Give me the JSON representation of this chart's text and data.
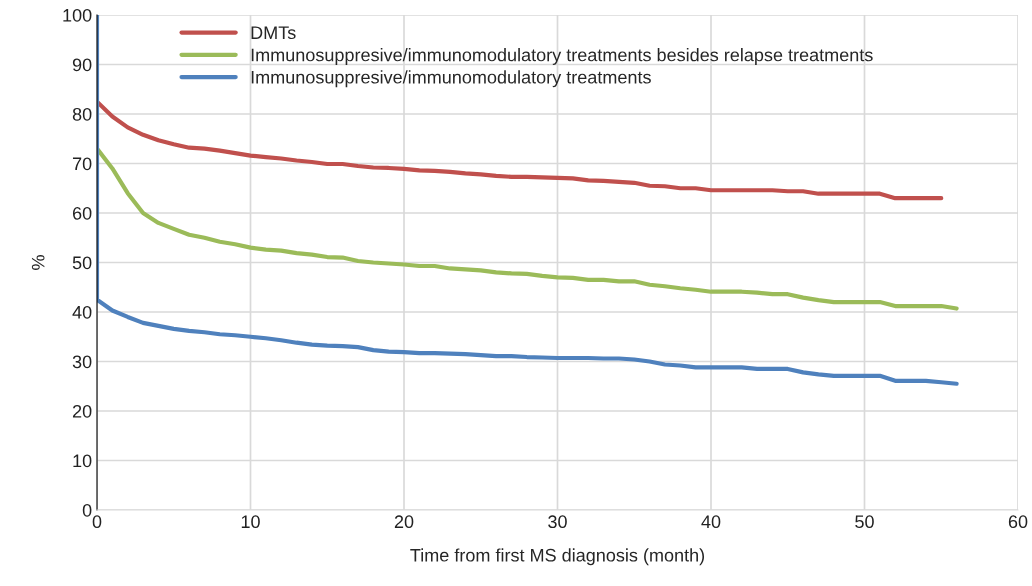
{
  "chart_data": {
    "type": "line",
    "xlabel": "Time from first MS diagnosis (month)",
    "ylabel": "%",
    "xlim": [
      0,
      60
    ],
    "xticks": [
      0,
      10,
      20,
      30,
      40,
      50,
      60
    ],
    "ylim": [
      0,
      100
    ],
    "yticks": [
      0,
      10,
      20,
      30,
      40,
      50,
      60,
      70,
      80,
      90,
      100
    ],
    "grid": true,
    "legend": "top",
    "marker": "none",
    "line_style": "solid",
    "series": [
      {
        "name": "DMTs",
        "color": "#c0504d",
        "x": [
          0,
          1,
          2,
          3,
          4,
          5,
          6,
          7,
          8,
          9,
          10,
          11,
          12,
          13,
          14,
          15,
          16,
          17,
          18,
          19,
          20,
          21,
          22,
          23,
          24,
          25,
          26,
          27,
          28,
          29,
          30,
          31,
          32,
          33,
          34,
          35,
          36,
          37,
          38,
          39,
          40,
          41,
          42,
          43,
          44,
          45,
          46,
          47,
          48,
          49,
          50,
          51,
          52,
          53,
          54,
          55
        ],
        "values": [
          82.5,
          79.5,
          77.3,
          75.8,
          74.7,
          73.9,
          73.2,
          73.0,
          72.6,
          72.1,
          71.6,
          71.3,
          71.0,
          70.6,
          70.3,
          69.9,
          69.9,
          69.5,
          69.2,
          69.1,
          68.9,
          68.6,
          68.5,
          68.3,
          68.0,
          67.8,
          67.5,
          67.3,
          67.3,
          67.2,
          67.1,
          67.0,
          66.6,
          66.5,
          66.3,
          66.1,
          65.5,
          65.4,
          65.0,
          65.0,
          64.6,
          64.6,
          64.6,
          64.6,
          64.6,
          64.4,
          64.4,
          63.9,
          63.9,
          63.9,
          63.9,
          63.9,
          63.0,
          63.0,
          63.0,
          63.0
        ]
      },
      {
        "name": "Immunosuppresive/immunomodulatory treatments besides relapse treatments",
        "color": "#9bbb59",
        "x": [
          0,
          1,
          2,
          3,
          4,
          5,
          6,
          7,
          8,
          9,
          10,
          11,
          12,
          13,
          14,
          15,
          16,
          17,
          18,
          19,
          20,
          21,
          22,
          23,
          24,
          25,
          26,
          27,
          28,
          29,
          30,
          31,
          32,
          33,
          34,
          35,
          36,
          37,
          38,
          39,
          40,
          41,
          42,
          43,
          44,
          45,
          46,
          47,
          48,
          49,
          50,
          51,
          52,
          53,
          54,
          55,
          56
        ],
        "values": [
          73,
          69,
          64,
          60,
          58,
          56.8,
          55.6,
          55.0,
          54.2,
          53.7,
          53.0,
          52.6,
          52.4,
          51.9,
          51.6,
          51.1,
          51.0,
          50.3,
          50.0,
          49.8,
          49.6,
          49.3,
          49.3,
          48.8,
          48.6,
          48.4,
          48.0,
          47.8,
          47.7,
          47.3,
          47.0,
          46.9,
          46.5,
          46.5,
          46.2,
          46.2,
          45.5,
          45.2,
          44.8,
          44.5,
          44.1,
          44.1,
          44.1,
          43.9,
          43.6,
          43.6,
          42.9,
          42.4,
          42.0,
          42.0,
          42.0,
          42.0,
          41.2,
          41.2,
          41.2,
          41.2,
          40.7
        ]
      },
      {
        "name": "Immunosuppresive/immunomodulatory treatments",
        "color": "#4f81bd",
        "x": [
          0,
          0,
          1,
          2,
          3,
          4,
          5,
          6,
          7,
          8,
          9,
          10,
          11,
          12,
          13,
          14,
          15,
          16,
          17,
          18,
          19,
          20,
          21,
          22,
          23,
          24,
          25,
          26,
          27,
          28,
          29,
          30,
          31,
          32,
          33,
          34,
          35,
          36,
          37,
          38,
          39,
          40,
          41,
          42,
          43,
          44,
          45,
          46,
          47,
          48,
          49,
          50,
          51,
          52,
          53,
          54,
          55,
          56
        ],
        "values": [
          100,
          42.5,
          40.3,
          39,
          37.8,
          37.2,
          36.6,
          36.2,
          35.9,
          35.5,
          35.3,
          35.0,
          34.7,
          34.3,
          33.8,
          33.4,
          33.2,
          33.1,
          32.9,
          32.3,
          32.0,
          31.9,
          31.7,
          31.7,
          31.6,
          31.5,
          31.3,
          31.1,
          31.1,
          30.9,
          30.8,
          30.7,
          30.7,
          30.7,
          30.6,
          30.6,
          30.4,
          30.0,
          29.4,
          29.2,
          28.8,
          28.8,
          28.8,
          28.8,
          28.5,
          28.5,
          28.5,
          27.8,
          27.4,
          27.1,
          27.1,
          27.1,
          27.1,
          26.1,
          26.1,
          26.1,
          25.8,
          25.5
        ]
      }
    ]
  }
}
